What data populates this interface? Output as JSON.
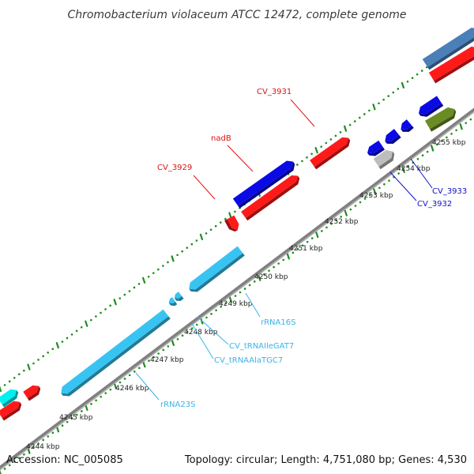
{
  "title": "Chromobacterium violaceum ATCC 12472, complete genome",
  "footer": {
    "accession": "Accession: NC_005085",
    "summary": "Topology: circular; Length: 4,751,080 bp; Genes: 4,530"
  },
  "axis": {
    "unit": "kbp",
    "ticks": [
      {
        "label": "4244 kbp"
      },
      {
        "label": "4245 kbp"
      },
      {
        "label": "4246 kbp"
      },
      {
        "label": "4247 kbp"
      },
      {
        "label": "4248 kbp"
      },
      {
        "label": "4249 kbp"
      },
      {
        "label": "4250 kbp"
      },
      {
        "label": "4251 kbp"
      },
      {
        "label": "4252 kbp"
      },
      {
        "label": "4253 kbp"
      },
      {
        "label": "4254 kbp"
      },
      {
        "label": "4255 kbp"
      }
    ]
  },
  "colors": {
    "cds_forward": "#ff1a1a",
    "cds_reverse": "#0a0ae6",
    "rna": "#38c4f2",
    "backbone": "#808080",
    "tick_dot": "#1e8c1e",
    "label_red": "#e01010",
    "label_blue": "#1010c8",
    "label_cyan": "#38b4e8",
    "other_steel": "#4a7fb8",
    "other_olive": "#6b8c23",
    "other_gray": "#bdbdbd",
    "cyan_bright": "#00f0f0"
  },
  "genes": [
    {
      "name": "CV_3929",
      "type": "CDS",
      "strand": "forward",
      "color_key": "label_red"
    },
    {
      "name": "nadB",
      "type": "CDS",
      "strand": "reverse",
      "color_key": "label_red"
    },
    {
      "name": "CV_3931",
      "type": "CDS",
      "strand": "forward",
      "color_key": "label_red"
    },
    {
      "name": "CV_3932",
      "type": "CDS",
      "strand": "reverse",
      "color_key": "label_blue"
    },
    {
      "name": "CV_3933",
      "type": "CDS",
      "strand": "reverse",
      "color_key": "label_blue"
    },
    {
      "name": "rRNA16S",
      "type": "rRNA",
      "strand": "reverse",
      "color_key": "label_cyan"
    },
    {
      "name": "CV_tRNAIleGAT7",
      "type": "tRNA",
      "strand": "reverse",
      "color_key": "label_cyan"
    },
    {
      "name": "CV_tRNAAlaTGC7",
      "type": "tRNA",
      "strand": "reverse",
      "color_key": "label_cyan"
    },
    {
      "name": "rRNA23S",
      "type": "rRNA",
      "strand": "reverse",
      "color_key": "label_cyan"
    }
  ]
}
